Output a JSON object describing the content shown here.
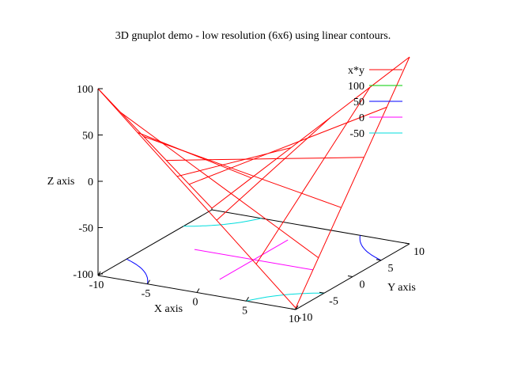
{
  "chart_data": {
    "type": "surface3d",
    "title": "3D gnuplot demo - low resolution (6x6) using linear contours.",
    "xlabel": "X axis",
    "ylabel": "Y axis",
    "zlabel": "Z axis",
    "x_ticks": [
      "-10",
      "-5",
      "0",
      "5",
      "10"
    ],
    "y_ticks": [
      "-10",
      "-5",
      "0",
      "5",
      "10"
    ],
    "z_ticks": [
      "100",
      "50",
      "0",
      "-50",
      "-100"
    ],
    "xlim": [
      -10,
      10
    ],
    "ylim": [
      -10,
      10
    ],
    "zlim": [
      -100,
      100
    ],
    "grid_x": [
      -10,
      -6,
      -2,
      2,
      6,
      10
    ],
    "grid_y": [
      -10,
      -6,
      -2,
      2,
      6,
      10
    ],
    "function": "x*y",
    "surface": [
      [
        100,
        60,
        20,
        -20,
        -60,
        -100
      ],
      [
        60,
        36,
        12,
        -12,
        -36,
        -60
      ],
      [
        20,
        12,
        4,
        -4,
        -12,
        -20
      ],
      [
        -20,
        -12,
        -4,
        4,
        12,
        20
      ],
      [
        -60,
        -36,
        -12,
        12,
        36,
        60
      ],
      [
        -100,
        -60,
        -20,
        20,
        60,
        100
      ]
    ],
    "legend_position": "top-right",
    "series": [
      {
        "name": "x*y",
        "color": "#ff0000"
      },
      {
        "name": "100",
        "color": "#00cc00"
      },
      {
        "name": "50",
        "color": "#0000ff"
      },
      {
        "name": "0",
        "color": "#ff00ff"
      },
      {
        "name": "-50",
        "color": "#00dddd"
      }
    ]
  }
}
